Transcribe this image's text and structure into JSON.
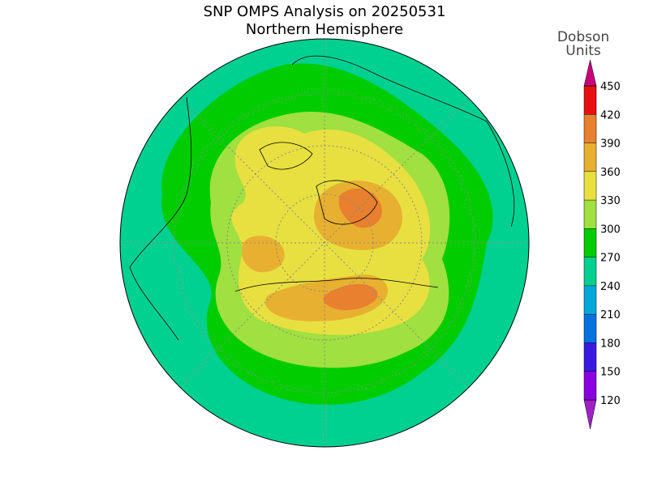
{
  "title": "SNP OMPS Analysis on 20250531",
  "subtitle": "Northern Hemisphere",
  "colorbar": {
    "label": [
      "Dobson",
      "Units"
    ],
    "ticks": [
      120,
      150,
      180,
      210,
      240,
      270,
      300,
      330,
      360,
      390,
      420,
      450
    ],
    "colors": [
      "#a020c8",
      "#8a00e0",
      "#3a1ae0",
      "#0072e0",
      "#00a8d8",
      "#00d090",
      "#00cc00",
      "#a0e040",
      "#e8e040",
      "#e8b030",
      "#e88030",
      "#e81010",
      "#c8007a"
    ]
  }
}
